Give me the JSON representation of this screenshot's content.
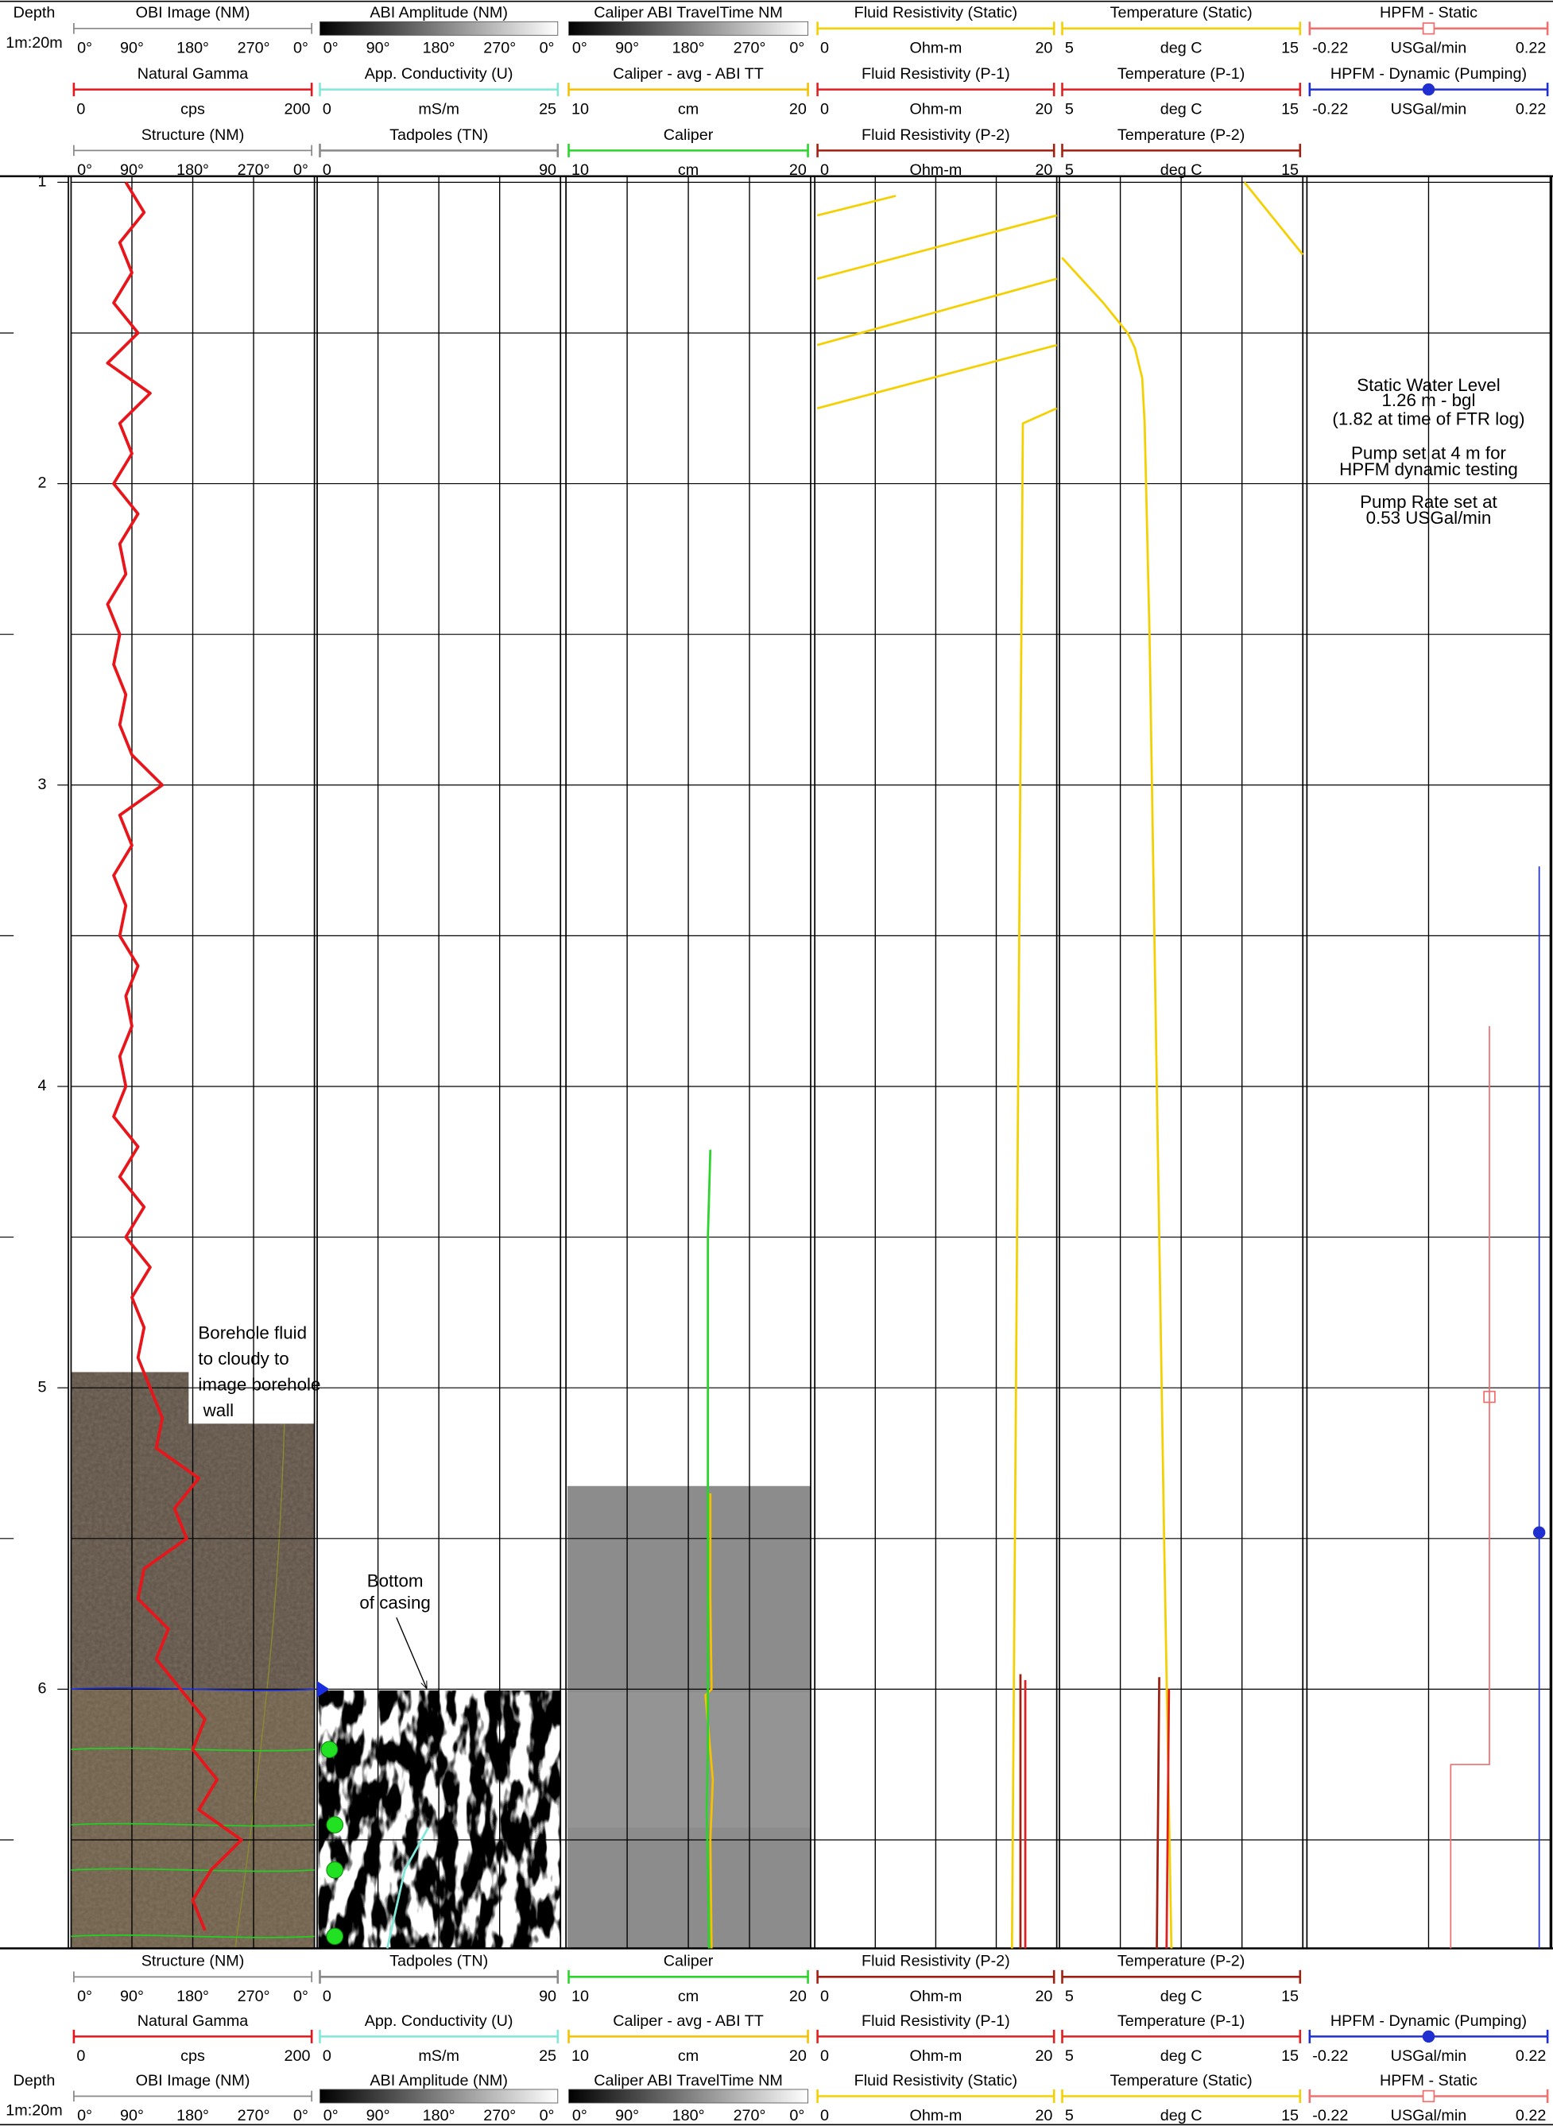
{
  "chart_data": {
    "type": "well-log",
    "depth_title": "Depth",
    "depth_scale": "1m:20m",
    "ylim": [
      0.98,
      6.86
    ],
    "yticks": [
      1,
      2,
      3,
      4,
      5,
      6
    ],
    "minor_yticks": [
      1.5,
      2.5,
      3.5,
      4.5,
      5.5,
      6.5
    ],
    "grid": true,
    "tracks": [
      {
        "curves": [
          {
            "name": "OBI Image (NM)",
            "labels": [
              "0°",
              "90°",
              "180°",
              "270°",
              "0°"
            ],
            "color": "#888888"
          },
          {
            "name": "Natural Gamma",
            "color": "#e8151b",
            "min": 0,
            "unit": "cps",
            "max": 200,
            "depth": [
              1.0,
              1.1,
              1.2,
              1.3,
              1.4,
              1.5,
              1.6,
              1.7,
              1.8,
              1.9,
              2.0,
              2.1,
              2.2,
              2.3,
              2.4,
              2.5,
              2.6,
              2.7,
              2.8,
              2.9,
              3.0,
              3.1,
              3.2,
              3.3,
              3.4,
              3.5,
              3.6,
              3.7,
              3.8,
              3.9,
              4.0,
              4.1,
              4.2,
              4.3,
              4.4,
              4.5,
              4.6,
              4.7,
              4.8,
              4.9,
              5.0,
              5.1,
              5.2,
              5.3,
              5.4,
              5.5,
              5.6,
              5.7,
              5.8,
              5.9,
              6.0,
              6.1,
              6.2,
              6.3,
              6.4,
              6.5,
              6.6,
              6.7,
              6.8
            ],
            "values": [
              45,
              60,
              40,
              50,
              35,
              55,
              30,
              65,
              40,
              50,
              35,
              55,
              40,
              45,
              30,
              40,
              35,
              45,
              40,
              50,
              75,
              40,
              50,
              35,
              45,
              40,
              55,
              45,
              50,
              40,
              45,
              35,
              55,
              40,
              60,
              45,
              65,
              50,
              60,
              55,
              65,
              75,
              70,
              105,
              85,
              95,
              60,
              55,
              80,
              70,
              90,
              110,
              100,
              120,
              105,
              140,
              115,
              100,
              110
            ]
          },
          {
            "name": "Structure (NM)",
            "labels": [
              "0°",
              "90°",
              "180°",
              "270°",
              "0°"
            ],
            "color": "#888888",
            "picks": [
              {
                "depth": 6.0,
                "color": "#1a2ee0"
              },
              {
                "depth": 6.2,
                "color": "#22d022"
              },
              {
                "depth": 6.45,
                "color": "#22d022"
              },
              {
                "depth": 6.6,
                "color": "#22d022"
              },
              {
                "depth": 6.82,
                "color": "#22d022"
              }
            ]
          }
        ]
      },
      {
        "curves": [
          {
            "name": "ABI Amplitude (NM)",
            "labels": [
              "0°",
              "90°",
              "180°",
              "270°",
              "0°"
            ],
            "color": "#888888",
            "gradient": [
              "#000000",
              "#ffffff"
            ]
          },
          {
            "name": "App. Conductivity (U)",
            "color": "#7fe8d8",
            "min": 0,
            "unit": "mS/m",
            "max": 25,
            "depth": [
              6.46,
              6.6,
              6.86
            ],
            "values": [
              11.4,
              9,
              7.2
            ]
          },
          {
            "name": "Tadpoles (TN)",
            "color": "#888888",
            "min": 0,
            "max": 90,
            "depth": [
              6.0,
              6.2,
              6.45,
              6.6,
              6.82
            ],
            "values": [
              2,
              3,
              5,
              5,
              5
            ],
            "colors": [
              "#1a2ee0",
              "#22e022",
              "#22e022",
              "#22e022",
              "#22e022"
            ]
          }
        ]
      },
      {
        "curves": [
          {
            "name": "Caliper ABI TravelTime NM",
            "labels": [
              "0°",
              "90°",
              "180°",
              "270°",
              "0°"
            ],
            "color": "#888888",
            "gradient": [
              "#000000",
              "#ffffff"
            ]
          },
          {
            "name": "Caliper - avg - ABI TT",
            "color": "#f5c000",
            "min": 10,
            "unit": "cm",
            "max": 20,
            "depth": [
              5.35,
              5.7,
              6.0,
              6.02,
              6.3,
              6.5,
              6.86
            ],
            "values": [
              15.9,
              15.9,
              15.95,
              15.7,
              16.0,
              15.9,
              15.95
            ]
          },
          {
            "name": "Caliper",
            "color": "#2bd42b",
            "min": 10,
            "unit": "cm",
            "max": 20,
            "depth": [
              4.21,
              4.5,
              5.0,
              5.5,
              6.0,
              6.2,
              6.4,
              6.6,
              6.86
            ],
            "values": [
              15.9,
              15.8,
              15.8,
              15.8,
              15.8,
              15.8,
              15.75,
              15.8,
              15.85
            ]
          }
        ]
      },
      {
        "curves": [
          {
            "name": "Fluid Resistivity (Static)",
            "color": "#f5d000",
            "min": 0,
            "unit": "Ohm-m",
            "max": 20,
            "depth": [
              1.045,
              1.11,
              1.11,
              1.11,
              1.32,
              1.32,
              1.32,
              1.54,
              1.54,
              1.54,
              1.75,
              1.75,
              1.75,
              1.8,
              6.86
            ],
            "values": [
              6.7,
              0.2,
              null,
              20,
              0.2,
              null,
              20,
              0.2,
              null,
              20,
              0.2,
              null,
              20,
              17.2,
              16.3
            ]
          },
          {
            "name": "Fluid Resistivity (P-1)",
            "color": "#e02020",
            "min": 0,
            "unit": "Ohm-m",
            "max": 20,
            "depth": [
              5.97,
              6.86
            ],
            "values": [
              17.4,
              17.4
            ]
          },
          {
            "name": "Fluid Resistivity (P-2)",
            "color": "#a02010",
            "min": 0,
            "unit": "Ohm-m",
            "max": 20,
            "depth": [
              5.95,
              6.86
            ],
            "values": [
              17.0,
              17.0
            ]
          }
        ]
      },
      {
        "curves": [
          {
            "name": "Temperature (Static)",
            "color": "#f5d000",
            "min": 5,
            "unit": "deg C",
            "max": 15,
            "depth": [
              1.0,
              1.24,
              1.245,
              1.25,
              1.4,
              1.5,
              1.55,
              1.65,
              1.8,
              2.5,
              3.5,
              4.5,
              5.5,
              6.86
            ],
            "values": [
              12.6,
              15.0,
              null,
              5.1,
              6.8,
              7.8,
              8.1,
              8.4,
              8.5,
              8.7,
              8.9,
              9.1,
              9.3,
              9.6
            ]
          },
          {
            "name": "Temperature (P-1)",
            "color": "#e02020",
            "min": 5,
            "unit": "deg C",
            "max": 15,
            "depth": [
              6.0,
              6.86
            ],
            "values": [
              9.5,
              9.4
            ]
          },
          {
            "name": "Temperature (P-2)",
            "color": "#a02010",
            "min": 5,
            "unit": "deg C",
            "max": 15,
            "depth": [
              5.96,
              6.86
            ],
            "values": [
              9.1,
              9.0
            ]
          }
        ]
      },
      {
        "curves": [
          {
            "name": "HPFM - Static",
            "color": "#f07070",
            "min": -0.22,
            "unit": "USGal/min",
            "max": 0.22,
            "marker": "square",
            "depth": [
              3.8,
              6.25,
              6.25,
              6.86
            ],
            "values": [
              0.11,
              0.11,
              0.04,
              0.04
            ],
            "point": {
              "depth": 5.03,
              "value": 0.11
            }
          },
          {
            "name": "HPFM - Dynamic (Pumping)",
            "color": "#2030d0",
            "min": -0.22,
            "unit": "USGal/min",
            "max": 0.22,
            "marker": "circle",
            "depth": [
              3.27,
              6.86
            ],
            "values": [
              0.2,
              0.2
            ],
            "point": {
              "depth": 5.48,
              "value": 0.2
            }
          }
        ]
      }
    ],
    "annotations": [
      {
        "lines": [
          "Static Water Level",
          "1.26 m - bgl",
          "(1.82 at time of FTR log)",
          "Pump set at 4 m for",
          "HPFM dynamic testing",
          "Pump Rate set at",
          "0.53 USGal/min"
        ]
      },
      {
        "lines": [
          "Borehole fluid",
          "to cloudy to",
          "image borehole",
          " wall"
        ]
      },
      {
        "lines": [
          "Bottom",
          "of casing"
        ]
      }
    ]
  }
}
